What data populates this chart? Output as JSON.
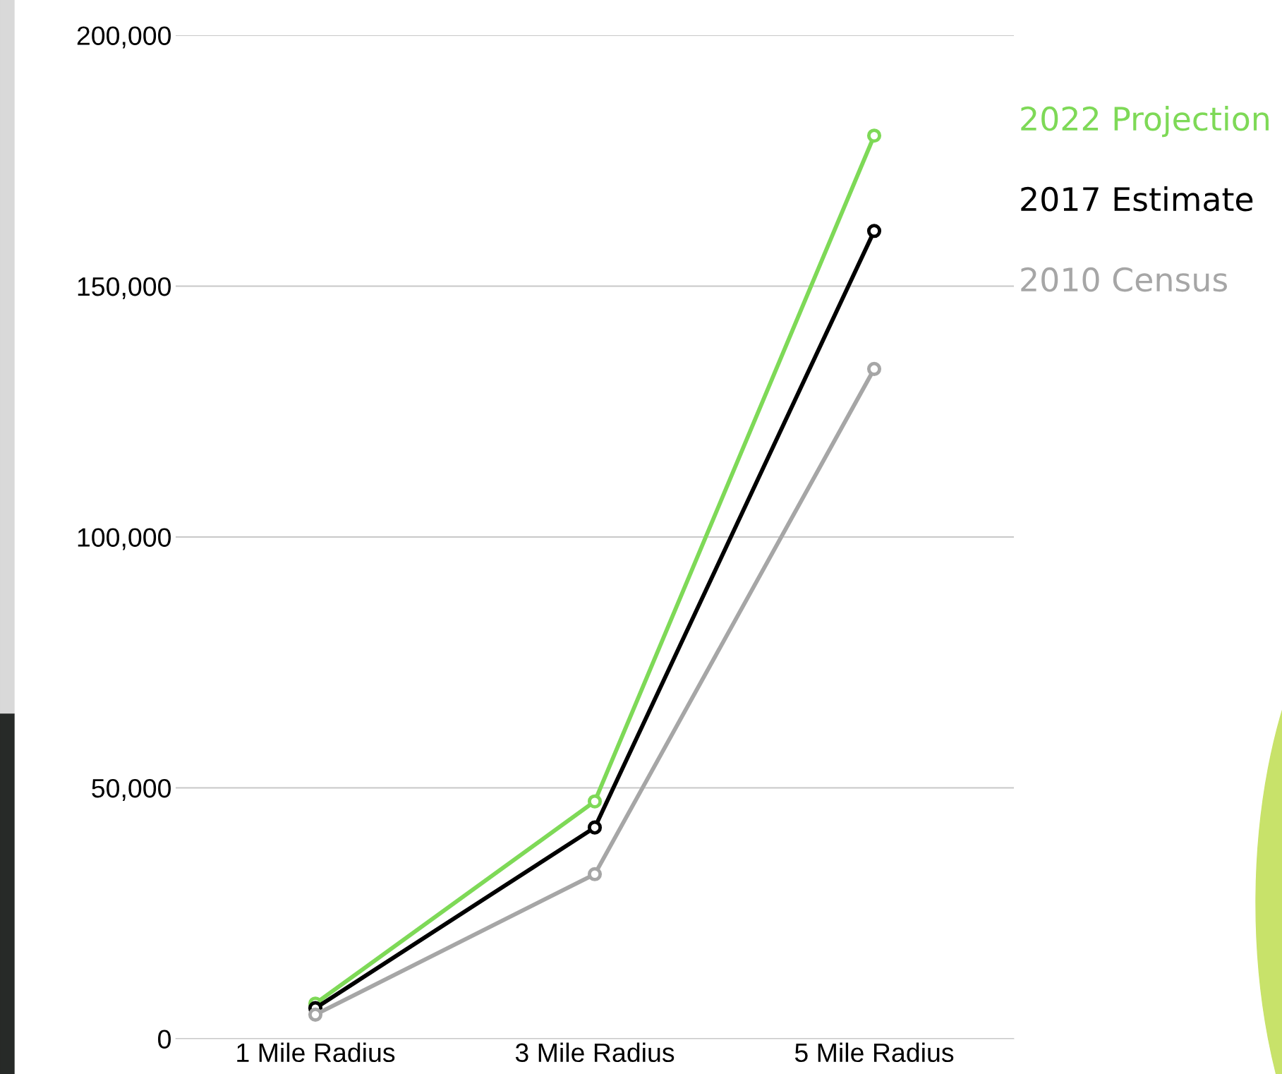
{
  "chart_data": {
    "type": "line",
    "categories": [
      "1 Mile Radius",
      "3 Mile Radius",
      "5 Mile Radius"
    ],
    "series": [
      {
        "name": "2022 Projection",
        "color": "#7ed957",
        "values": [
          7000,
          47300,
          180000
        ]
      },
      {
        "name": "2017 Estimate",
        "color": "#000000",
        "values": [
          6100,
          42100,
          161000
        ]
      },
      {
        "name": "2010 Census",
        "color": "#a6a6a6",
        "values": [
          4800,
          32800,
          133500
        ]
      }
    ],
    "ylim": [
      0,
      200000
    ],
    "yticks": [
      0,
      {
        "value": 50000,
        "label": "50,000"
      },
      {
        "value": 100000,
        "label": "100,000"
      },
      {
        "value": 150000,
        "label": "150,000"
      },
      {
        "value": 200000,
        "label": "200,000"
      }
    ],
    "grid": "y",
    "legend": "right",
    "marker": "circle",
    "line_style": "solid"
  }
}
